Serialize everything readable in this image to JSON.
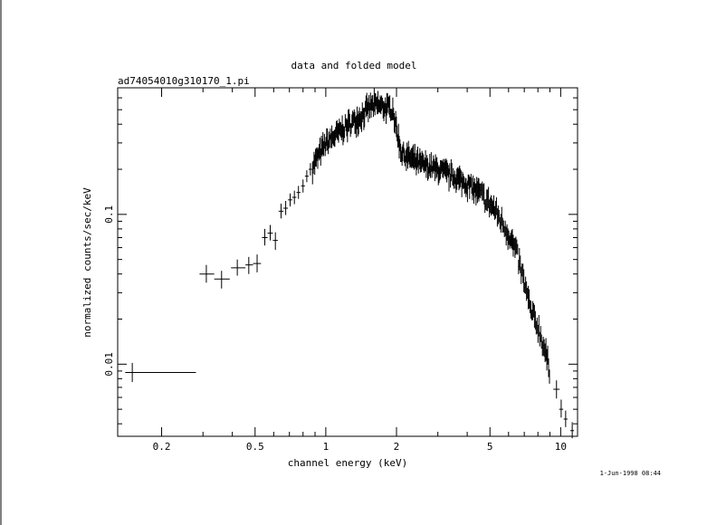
{
  "chart_data": {
    "type": "scatter",
    "title": "data and folded model",
    "subtitle": "ad74054010g310170_1.pi",
    "xlabel": "channel energy (keV)",
    "ylabel": "normalized counts/sec/keV",
    "x_scale": "log",
    "y_scale": "log",
    "xlim": [
      0.13,
      11.8
    ],
    "ylim": [
      0.0033,
      0.7
    ],
    "x_ticks": [
      {
        "value": 0.2,
        "label": "0.2"
      },
      {
        "value": 0.5,
        "label": "0.5"
      },
      {
        "value": 1,
        "label": "1"
      },
      {
        "value": 2,
        "label": "2"
      },
      {
        "value": 5,
        "label": "5"
      },
      {
        "value": 10,
        "label": "10"
      }
    ],
    "y_ticks": [
      {
        "value": 0.01,
        "label": "0.01"
      },
      {
        "value": 0.1,
        "label": "0.1"
      }
    ],
    "grid": false,
    "footer": "1-Jun-1998 08:44",
    "points": [
      {
        "x": 0.15,
        "y": 0.0088,
        "xlo": 0.14,
        "xhi": 0.28,
        "ylo": 0.0076,
        "yhi": 0.0102
      },
      {
        "x": 0.31,
        "y": 0.04,
        "xlo": 0.29,
        "xhi": 0.335,
        "ylo": 0.035,
        "yhi": 0.046
      },
      {
        "x": 0.36,
        "y": 0.037,
        "xlo": 0.335,
        "xhi": 0.39,
        "ylo": 0.032,
        "yhi": 0.042
      },
      {
        "x": 0.42,
        "y": 0.044,
        "xlo": 0.395,
        "xhi": 0.455,
        "ylo": 0.039,
        "yhi": 0.05
      },
      {
        "x": 0.47,
        "y": 0.046,
        "xlo": 0.455,
        "xhi": 0.49,
        "ylo": 0.04,
        "yhi": 0.052
      },
      {
        "x": 0.51,
        "y": 0.047,
        "xlo": 0.49,
        "xhi": 0.53,
        "ylo": 0.041,
        "yhi": 0.054
      },
      {
        "x": 0.55,
        "y": 0.07,
        "xlo": 0.535,
        "xhi": 0.565,
        "ylo": 0.062,
        "yhi": 0.08
      },
      {
        "x": 0.58,
        "y": 0.075,
        "xlo": 0.565,
        "xhi": 0.595,
        "ylo": 0.067,
        "yhi": 0.085
      },
      {
        "x": 0.61,
        "y": 0.067,
        "xlo": 0.595,
        "xhi": 0.625,
        "ylo": 0.058,
        "yhi": 0.076
      },
      {
        "x": 0.645,
        "y": 0.105,
        "xlo": 0.63,
        "xhi": 0.66,
        "ylo": 0.094,
        "yhi": 0.118
      },
      {
        "x": 0.675,
        "y": 0.11,
        "xlo": 0.66,
        "xhi": 0.69,
        "ylo": 0.099,
        "yhi": 0.123
      },
      {
        "x": 0.705,
        "y": 0.125,
        "xlo": 0.69,
        "xhi": 0.72,
        "ylo": 0.113,
        "yhi": 0.138
      },
      {
        "x": 0.735,
        "y": 0.13,
        "xlo": 0.72,
        "xhi": 0.75,
        "ylo": 0.117,
        "yhi": 0.144
      },
      {
        "x": 0.765,
        "y": 0.14,
        "xlo": 0.75,
        "xhi": 0.78,
        "ylo": 0.127,
        "yhi": 0.155
      },
      {
        "x": 0.8,
        "y": 0.155,
        "xlo": 0.785,
        "xhi": 0.815,
        "ylo": 0.14,
        "yhi": 0.171
      },
      {
        "x": 0.83,
        "y": 0.18,
        "xlo": 0.815,
        "xhi": 0.845,
        "ylo": 0.164,
        "yhi": 0.197
      },
      {
        "x": 0.86,
        "y": 0.2,
        "xlo": 0.845,
        "xhi": 0.875,
        "ylo": 0.182,
        "yhi": 0.22
      },
      {
        "x": 9.6,
        "y": 0.0068,
        "xlo": 9.3,
        "xhi": 9.9,
        "ylo": 0.0059,
        "yhi": 0.0078
      },
      {
        "x": 10.05,
        "y": 0.005,
        "xlo": 9.85,
        "xhi": 10.25,
        "ylo": 0.0044,
        "yhi": 0.0058
      },
      {
        "x": 10.5,
        "y": 0.0043,
        "xlo": 10.3,
        "xhi": 10.7,
        "ylo": 0.0038,
        "yhi": 0.0049
      },
      {
        "x": 11.2,
        "y": 0.0036,
        "xlo": 11.0,
        "xhi": 11.4,
        "ylo": 0.0032,
        "yhi": 0.0041
      }
    ],
    "dense_segments": [
      {
        "x": [
          0.875,
          1.0,
          1.2,
          1.4,
          1.55,
          1.65,
          1.8,
          1.95
        ],
        "y": [
          0.21,
          0.3,
          0.38,
          0.45,
          0.53,
          0.54,
          0.52,
          0.5
        ],
        "scatter": 0.1,
        "count": 110
      },
      {
        "x": [
          1.95,
          2.1,
          2.5,
          3.0,
          3.5,
          4.0,
          4.5
        ],
        "y": [
          0.45,
          0.26,
          0.22,
          0.2,
          0.18,
          0.16,
          0.14
        ],
        "scatter": 0.1,
        "count": 120
      },
      {
        "x": [
          4.5,
          5.2,
          6.0,
          6.5,
          7.0,
          7.5,
          8.0,
          8.5,
          9.0
        ],
        "y": [
          0.14,
          0.11,
          0.075,
          0.055,
          0.035,
          0.022,
          0.018,
          0.013,
          0.009
        ],
        "scatter": 0.12,
        "count": 80
      }
    ]
  }
}
